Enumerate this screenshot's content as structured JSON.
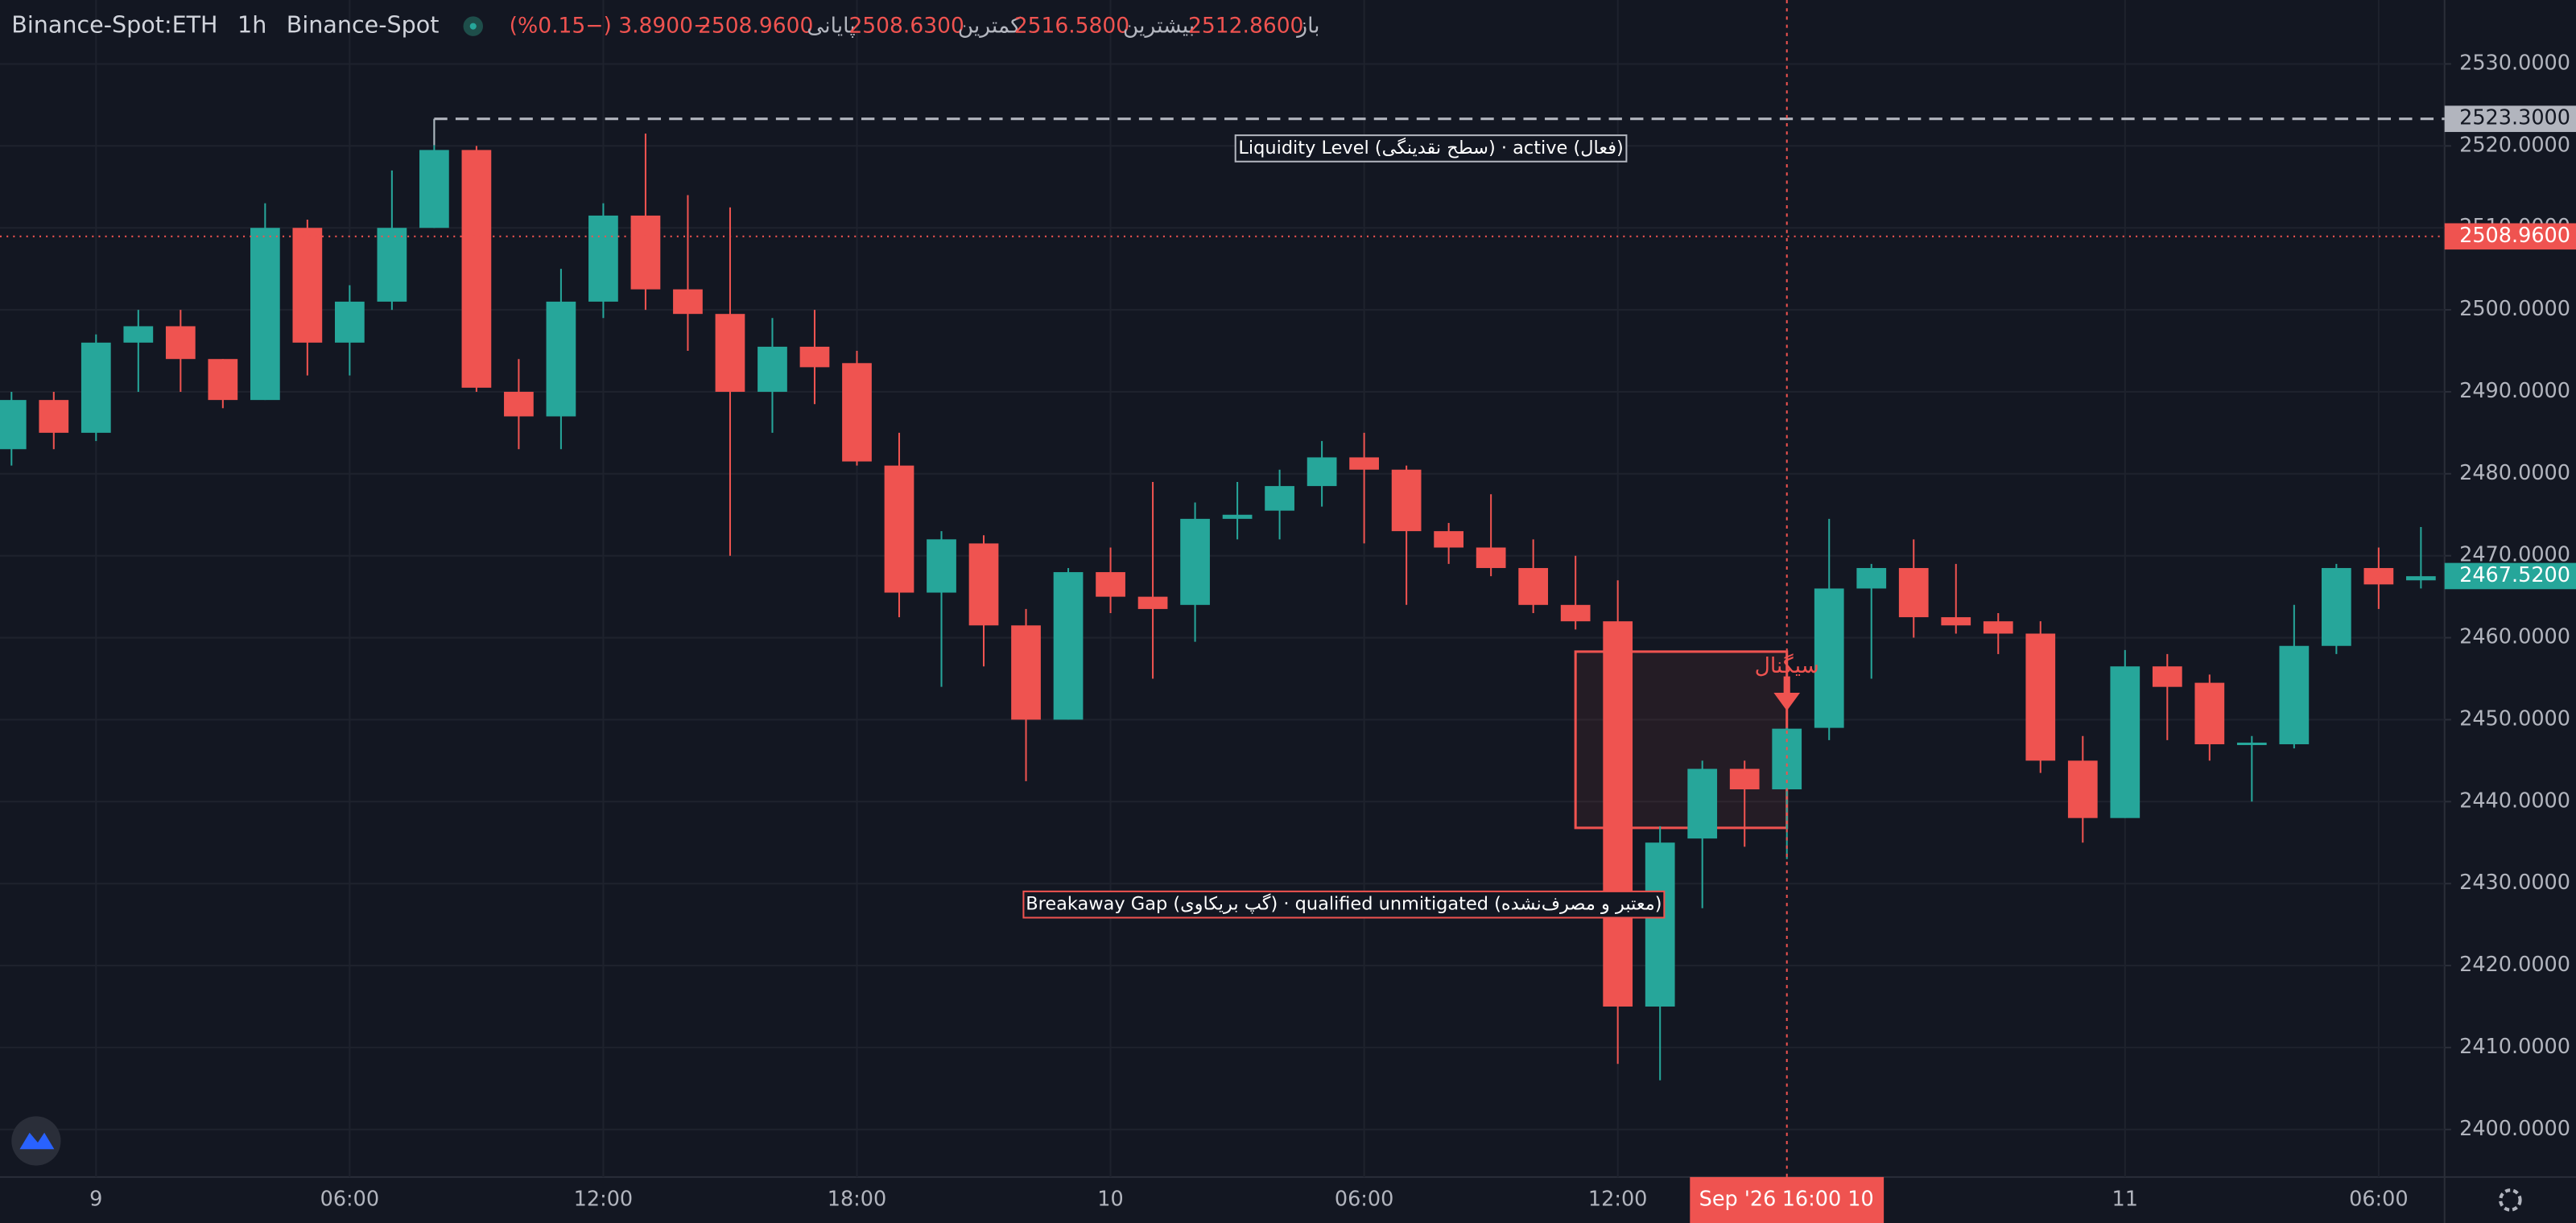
{
  "chart_data": {
    "type": "candlestick",
    "header": {
      "symbol": "Binance-Spot:ETH",
      "interval": "1h",
      "exchange": "Binance-Spot",
      "fields": [
        {
          "label": "باز",
          "value": "2512.8600"
        },
        {
          "label": "بیشترین",
          "value": "2516.5800"
        },
        {
          "label": "کمترین",
          "value": "2508.6300"
        },
        {
          "label": "پایانی",
          "value": "2508.9600"
        }
      ],
      "change": "−3.8900 (−0.15%)"
    },
    "categories": [
      null,
      null,
      "9",
      null,
      null,
      null,
      null,
      null,
      "06:00",
      null,
      null,
      null,
      null,
      null,
      "12:00",
      null,
      null,
      null,
      null,
      null,
      "18:00",
      null,
      null,
      null,
      null,
      null,
      "10",
      null,
      null,
      null,
      null,
      null,
      "06:00",
      null,
      null,
      null,
      null,
      null,
      "12:00",
      null,
      null,
      null,
      null,
      null,
      null,
      null,
      null,
      null,
      null,
      null,
      "11",
      null,
      null,
      null,
      null,
      null,
      "06:00",
      null
    ],
    "open": [
      2483,
      2489,
      2485,
      2496,
      2498,
      2494,
      2489,
      2510,
      2496,
      2501,
      2510,
      2519.5,
      2490,
      2487,
      2501,
      2511.5,
      2502.5,
      2499.5,
      2490,
      2495.5,
      2493.5,
      2481,
      2465.5,
      2471.5,
      2461.5,
      2450,
      2468,
      2465,
      2464,
      2474.5,
      2475.5,
      2478.5,
      2482,
      2480.5,
      2473,
      2471,
      2468.5,
      2464,
      2462,
      2415,
      2435.5,
      2444,
      2441.5,
      2449,
      2466,
      2468.5,
      2462.5,
      2462,
      2460.5,
      2445,
      2438,
      2456.5,
      2454.5,
      2447,
      2447,
      2459,
      2468.5,
      2467
    ],
    "high": [
      2490,
      2490,
      2497,
      2500,
      2500,
      2494,
      2513,
      2511,
      2503,
      2517,
      2523.3,
      2520,
      2494,
      2505,
      2513,
      2521.5,
      2514,
      2512.5,
      2499,
      2500,
      2495,
      2485,
      2473,
      2472.5,
      2463.5,
      2468.5,
      2471,
      2479,
      2476.5,
      2479,
      2480.5,
      2484,
      2485,
      2481,
      2474,
      2477.5,
      2472,
      2470,
      2467,
      2437,
      2445,
      2445,
      2449,
      2474.5,
      2469,
      2472,
      2469,
      2463,
      2462,
      2448,
      2458.5,
      2458,
      2455.5,
      2448,
      2464,
      2469,
      2471,
      2473.5
    ],
    "low": [
      2481,
      2483,
      2484,
      2490,
      2490,
      2488,
      2489,
      2492,
      2492,
      2500,
      2510,
      2490,
      2483,
      2483,
      2499,
      2500,
      2495,
      2470,
      2485,
      2488.5,
      2481,
      2462.5,
      2454,
      2456.5,
      2442.5,
      2450,
      2463,
      2455,
      2459.5,
      2472,
      2472,
      2476,
      2471.5,
      2464,
      2469,
      2467.5,
      2463,
      2461,
      2408,
      2406,
      2427,
      2434.5,
      2433,
      2447.5,
      2455,
      2460,
      2460.5,
      2458,
      2443.5,
      2435,
      2438,
      2447.5,
      2445,
      2440,
      2446.5,
      2458,
      2463.5,
      2466
    ],
    "close": [
      2489,
      2485,
      2496,
      2498,
      2494,
      2489,
      2510,
      2496,
      2501,
      2510,
      2519.5,
      2490.5,
      2487,
      2501,
      2511.5,
      2502.5,
      2499.5,
      2490,
      2495.5,
      2493,
      2481.5,
      2465.5,
      2472,
      2461.5,
      2450,
      2468,
      2465,
      2463.5,
      2474.5,
      2475,
      2478.5,
      2482,
      2480.5,
      2473,
      2471,
      2468.5,
      2464,
      2462,
      2415,
      2435,
      2444,
      2441.5,
      2448.9,
      2466,
      2468.5,
      2462.5,
      2461.5,
      2460.5,
      2445,
      2438,
      2456.5,
      2454,
      2447,
      2447.2,
      2459,
      2468.5,
      2466.5,
      2467.5
    ],
    "up_color": "#26a69a",
    "down_color": "#ef5350",
    "ylim": [
      2394.2,
      2537.8
    ],
    "yticks": [
      {
        "value": 2400,
        "label": "2400.0000"
      },
      {
        "value": 2410,
        "label": "2410.0000"
      },
      {
        "value": 2420,
        "label": "2420.0000"
      },
      {
        "value": 2430,
        "label": "2430.0000"
      },
      {
        "value": 2440,
        "label": "2440.0000"
      },
      {
        "value": 2450,
        "label": "2450.0000"
      },
      {
        "value": 2460,
        "label": "2460.0000"
      },
      {
        "value": 2470,
        "label": "2470.0000"
      },
      {
        "value": 2480,
        "label": "2480.0000"
      },
      {
        "value": 2490,
        "label": "2490.0000"
      },
      {
        "value": 2500,
        "label": "2500.0000"
      },
      {
        "value": 2510,
        "label": "2510.0000"
      },
      {
        "value": 2520,
        "label": "2520.0000"
      },
      {
        "value": 2530,
        "label": "2530.0000"
      }
    ],
    "grid": true,
    "price_lines": [
      {
        "value": 2523.3,
        "label": "2523.3000",
        "color": "#b2b5be",
        "style": "dashed",
        "start": 10,
        "text": "Liquidity Level (سطح نقدینگی) · active (فعال)"
      },
      {
        "value": 2508.96,
        "label": "2508.9600",
        "color": "#ef5350",
        "style": "dotted"
      },
      {
        "value": 2467.52,
        "label": "2467.5200",
        "color": "#26a69a",
        "style": "none"
      }
    ],
    "zones": [
      {
        "from": 2436.8,
        "to": 2458.3,
        "start": 37,
        "end": 42,
        "color": "#ef5350",
        "text": "Breakaway Gap (گپ بریکاوی) · qualified unmitigated (معتبر و مصرف‌نشده)"
      }
    ],
    "signal": {
      "index": 42,
      "text": "سیگنال",
      "color": "#ef5350"
    },
    "crosshair": {
      "index": 42,
      "labels": [
        "Sep '26",
        "16:00 10"
      ],
      "color": "#ef5350"
    }
  }
}
